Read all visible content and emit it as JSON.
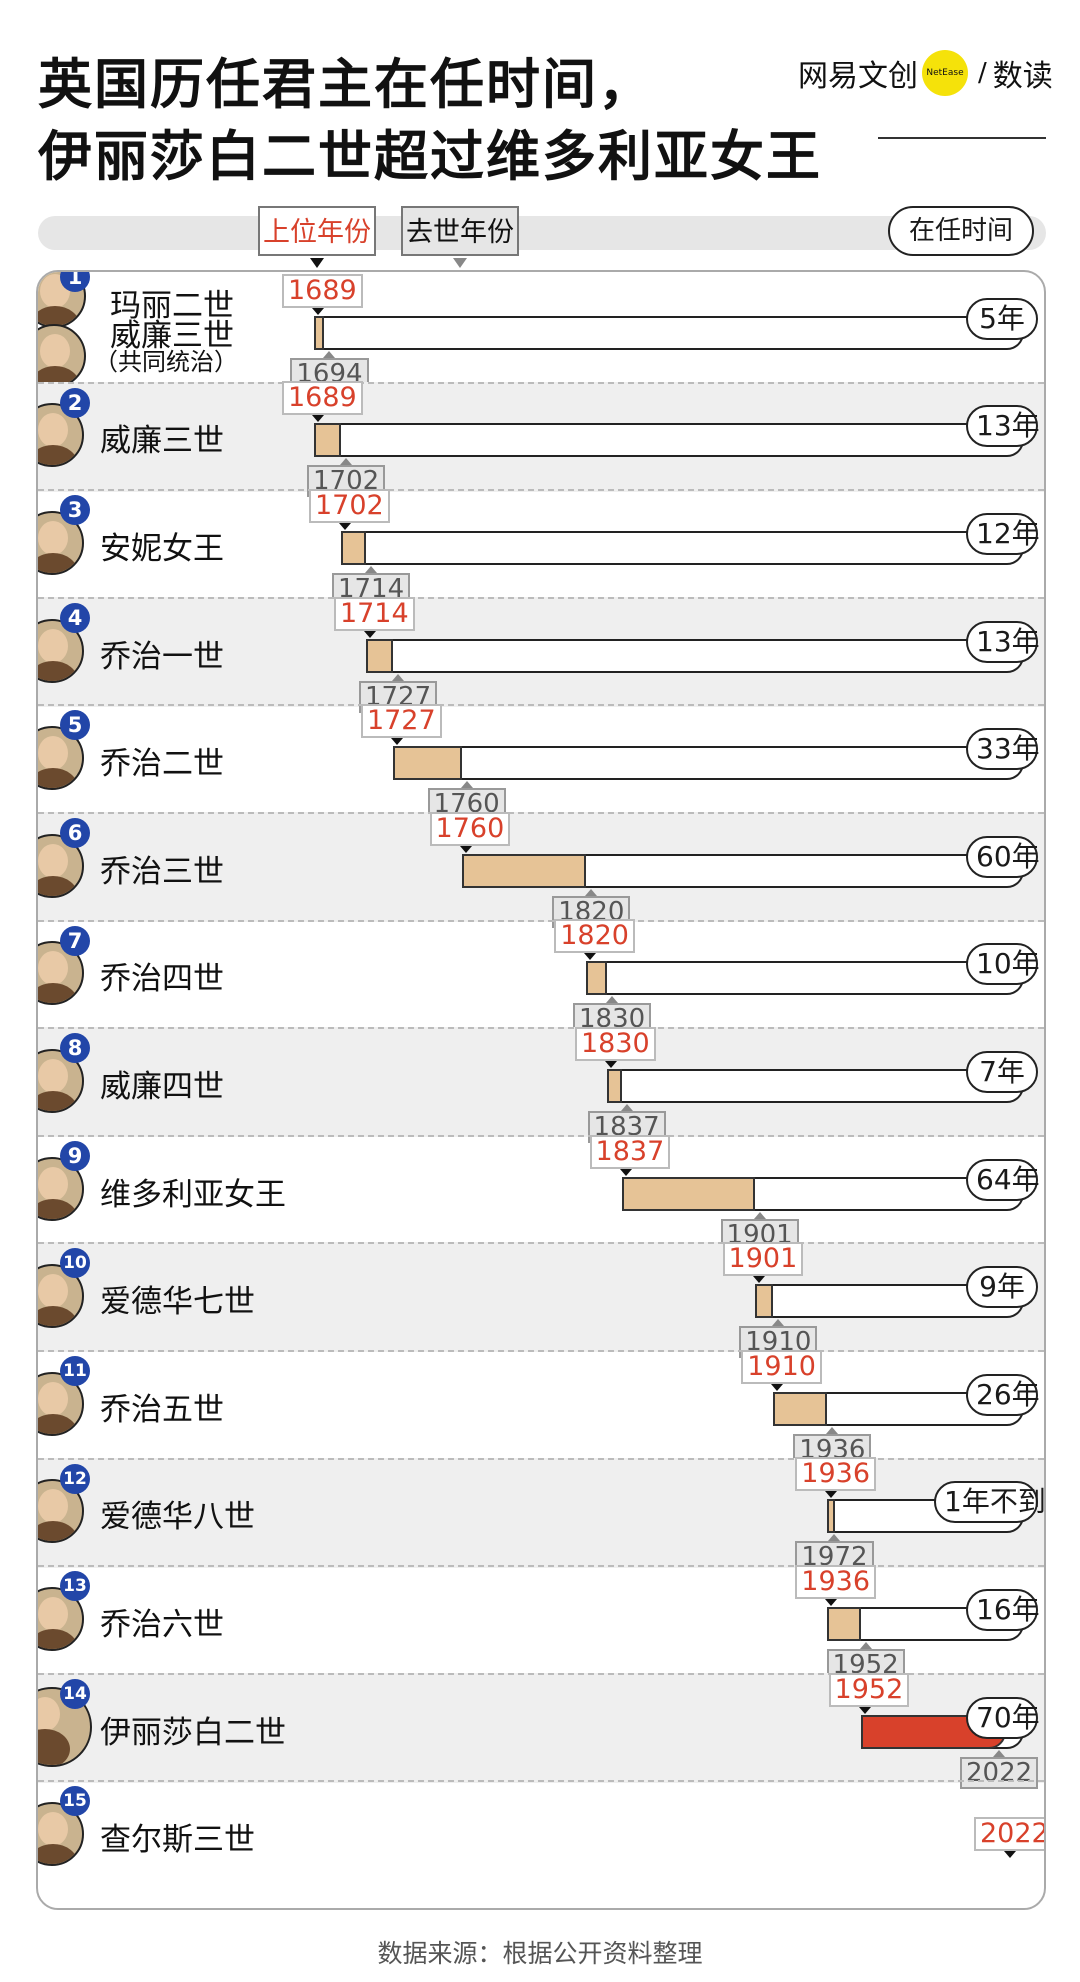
{
  "title_line1": "英国历任君主在任时间，",
  "title_line2": "伊丽莎白二世超过维多利亚女王",
  "brand": {
    "name": "网易文创",
    "logo_text": "NetEase",
    "sub": "数读",
    "accent": "#f5e20a"
  },
  "legend": {
    "start": "上位年份",
    "end": "去世年份",
    "duration": "在任时间"
  },
  "source": "数据来源：根据公开资料整理",
  "colors": {
    "bar": "#e6c396",
    "highlight": "#d8412b",
    "badge": "#2246a8",
    "start_text": "#d8412b"
  },
  "chart_data": {
    "type": "bar",
    "orientation": "horizontal",
    "x_range": [
      1689,
      2022
    ],
    "series": [
      {
        "rank": "1",
        "name": "玛丽二世",
        "name2": "威廉三世",
        "note": "（共同统治）",
        "start": 1689,
        "end": 1694,
        "start_label": "1689",
        "end_label": "1694",
        "duration": "5年"
      },
      {
        "rank": "2",
        "name": "威廉三世",
        "start": 1689,
        "end": 1702,
        "start_label": "1689",
        "end_label": "1702",
        "duration": "13年"
      },
      {
        "rank": "3",
        "name": "安妮女王",
        "start": 1702,
        "end": 1714,
        "start_label": "1702",
        "end_label": "1714",
        "duration": "12年"
      },
      {
        "rank": "4",
        "name": "乔治一世",
        "start": 1714,
        "end": 1727,
        "start_label": "1714",
        "end_label": "1727",
        "duration": "13年"
      },
      {
        "rank": "5",
        "name": "乔治二世",
        "start": 1727,
        "end": 1760,
        "start_label": "1727",
        "end_label": "1760",
        "duration": "33年"
      },
      {
        "rank": "6",
        "name": "乔治三世",
        "start": 1760,
        "end": 1820,
        "start_label": "1760",
        "end_label": "1820",
        "duration": "60年"
      },
      {
        "rank": "7",
        "name": "乔治四世",
        "start": 1820,
        "end": 1830,
        "start_label": "1820",
        "end_label": "1830",
        "duration": "10年"
      },
      {
        "rank": "8",
        "name": "威廉四世",
        "start": 1830,
        "end": 1837,
        "start_label": "1830",
        "end_label": "1837",
        "duration": "7年"
      },
      {
        "rank": "9",
        "name": "维多利亚女王",
        "start": 1837,
        "end": 1901,
        "start_label": "1837",
        "end_label": "1901",
        "duration": "64年"
      },
      {
        "rank": "10",
        "name": "爱德华七世",
        "start": 1901,
        "end": 1910,
        "start_label": "1901",
        "end_label": "1910",
        "duration": "9年"
      },
      {
        "rank": "11",
        "name": "乔治五世",
        "start": 1910,
        "end": 1936,
        "start_label": "1910",
        "end_label": "1936",
        "duration": "26年"
      },
      {
        "rank": "12",
        "name": "爱德华八世",
        "start": 1936,
        "end": 1937,
        "start_label": "1936",
        "end_label": "1972",
        "duration": "1年不到"
      },
      {
        "rank": "13",
        "name": "乔治六世",
        "start": 1936,
        "end": 1952,
        "start_label": "1936",
        "end_label": "1952",
        "duration": "16年"
      },
      {
        "rank": "14",
        "name": "伊丽莎白二世",
        "start": 1952,
        "end": 2022,
        "start_label": "1952",
        "end_label": "2022",
        "duration": "70年",
        "highlight": true
      },
      {
        "rank": "15",
        "name": "查尔斯三世",
        "start": 2022,
        "start_label": "2022"
      }
    ]
  }
}
